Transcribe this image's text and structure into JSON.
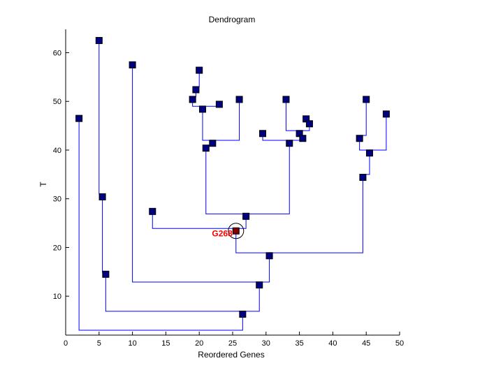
{
  "chart_data": {
    "type": "dendrogram",
    "title": "Dendrogram",
    "xlabel": "Reordered Genes",
    "ylabel": "T",
    "xlim": [
      0,
      50
    ],
    "ylim": [
      2,
      64.8
    ],
    "xticks": [
      0,
      5,
      10,
      15,
      20,
      25,
      30,
      35,
      40,
      45,
      50
    ],
    "yticks": [
      10,
      20,
      30,
      40,
      50,
      60
    ],
    "grid": false,
    "colors": {
      "link": "#0000ff",
      "node": "#000080",
      "highlight": "#800000",
      "highlight_label": "#ff0000"
    },
    "highlighted_node": {
      "label": "G268",
      "x": 25.5,
      "y": 23.4
    },
    "nodes": [
      [
        2,
        46.5
      ],
      [
        5,
        62.5
      ],
      [
        5.5,
        30.4
      ],
      [
        6,
        14.5
      ],
      [
        10,
        57.5
      ],
      [
        13,
        27.4
      ],
      [
        20,
        56.4
      ],
      [
        19.5,
        52.4
      ],
      [
        19,
        50.4
      ],
      [
        20.5,
        48.4
      ],
      [
        23,
        49.4
      ],
      [
        26,
        50.4
      ],
      [
        21,
        40.4
      ],
      [
        22,
        41.4
      ],
      [
        27,
        26.4
      ],
      [
        30.5,
        18.3
      ],
      [
        29,
        12.3
      ],
      [
        26.5,
        6.3
      ],
      [
        29.5,
        43.4
      ],
      [
        33,
        50.4
      ],
      [
        36,
        46.4
      ],
      [
        36.5,
        45.4
      ],
      [
        35,
        43.4
      ],
      [
        35.5,
        42.4
      ],
      [
        33.5,
        41.4
      ],
      [
        44,
        42.4
      ],
      [
        45,
        50.4
      ],
      [
        48,
        47.4
      ],
      [
        45.5,
        39.4
      ],
      [
        44.5,
        34.4
      ]
    ],
    "links": [
      [
        [
          2,
          46.5
        ],
        [
          2,
          3
        ],
        [
          26.5,
          3
        ],
        [
          26.5,
          6.3
        ]
      ],
      [
        [
          6,
          14.5
        ],
        [
          6,
          6.9
        ],
        [
          29,
          6.9
        ],
        [
          29,
          12.3
        ]
      ],
      [
        [
          10,
          57.5
        ],
        [
          10,
          12.9
        ],
        [
          30.5,
          12.9
        ],
        [
          30.5,
          18.3
        ]
      ],
      [
        [
          25.5,
          23.4
        ],
        [
          25.5,
          18.9
        ],
        [
          44.5,
          18.9
        ],
        [
          44.5,
          34.4
        ]
      ],
      [
        [
          13,
          27.4
        ],
        [
          13,
          23.9
        ],
        [
          27,
          23.9
        ],
        [
          27,
          26.4
        ]
      ],
      [
        [
          21,
          40.4
        ],
        [
          21,
          26.9
        ],
        [
          33.5,
          26.9
        ],
        [
          33.5,
          41.4
        ]
      ],
      [
        [
          20.5,
          48.4
        ],
        [
          20.5,
          42
        ],
        [
          26,
          42
        ],
        [
          26,
          50.4
        ]
      ],
      [
        [
          21,
          40.4
        ],
        [
          21,
          41
        ],
        [
          22,
          41
        ],
        [
          22,
          41.4
        ]
      ],
      [
        [
          19,
          50.4
        ],
        [
          19,
          49
        ],
        [
          23,
          49
        ],
        [
          23,
          49.4
        ]
      ],
      [
        [
          19.5,
          52.4
        ],
        [
          19.5,
          51
        ],
        [
          19,
          51
        ],
        [
          19,
          50.4
        ]
      ],
      [
        [
          20,
          56.4
        ],
        [
          20,
          53
        ],
        [
          19.5,
          53
        ],
        [
          19.5,
          52.4
        ]
      ],
      [
        [
          33,
          50.4
        ],
        [
          33,
          44
        ],
        [
          36.5,
          44
        ],
        [
          36.5,
          45.4
        ]
      ],
      [
        [
          36,
          46.4
        ],
        [
          36,
          46
        ],
        [
          36.5,
          46
        ],
        [
          36.5,
          45.4
        ]
      ],
      [
        [
          29.5,
          43.4
        ],
        [
          29.5,
          42
        ],
        [
          35.5,
          42
        ],
        [
          35.5,
          42.4
        ]
      ],
      [
        [
          35,
          43.4
        ],
        [
          35,
          43
        ],
        [
          35.5,
          43
        ],
        [
          35.5,
          42.4
        ]
      ],
      [
        [
          45,
          50.4
        ],
        [
          45,
          43
        ],
        [
          44,
          43
        ],
        [
          44,
          42.4
        ]
      ],
      [
        [
          44,
          42.4
        ],
        [
          44,
          40
        ],
        [
          48,
          40
        ],
        [
          48,
          47.4
        ]
      ],
      [
        [
          45.5,
          39.4
        ],
        [
          45.5,
          35
        ],
        [
          44.5,
          35
        ],
        [
          44.5,
          34.4
        ]
      ],
      [
        [
          5,
          62.5
        ],
        [
          5,
          31
        ],
        [
          5.5,
          31
        ],
        [
          5.5,
          30.4
        ]
      ],
      [
        [
          5.5,
          30.4
        ],
        [
          5.5,
          14.9
        ],
        [
          6,
          14.9
        ],
        [
          6,
          14.5
        ]
      ]
    ]
  }
}
